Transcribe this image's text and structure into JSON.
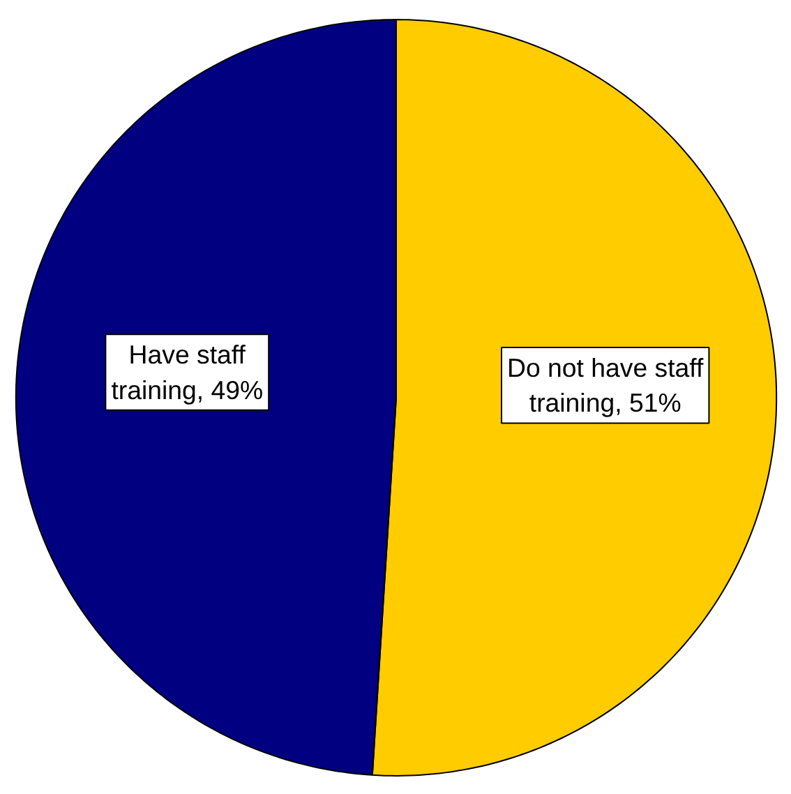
{
  "chart_data": {
    "type": "pie",
    "categories": [
      "Do not have staff training",
      "Have staff training"
    ],
    "values": [
      51,
      49
    ],
    "value_labels": [
      "51%",
      "49%"
    ],
    "colors": [
      "#ffcc00",
      "#000080"
    ]
  }
}
